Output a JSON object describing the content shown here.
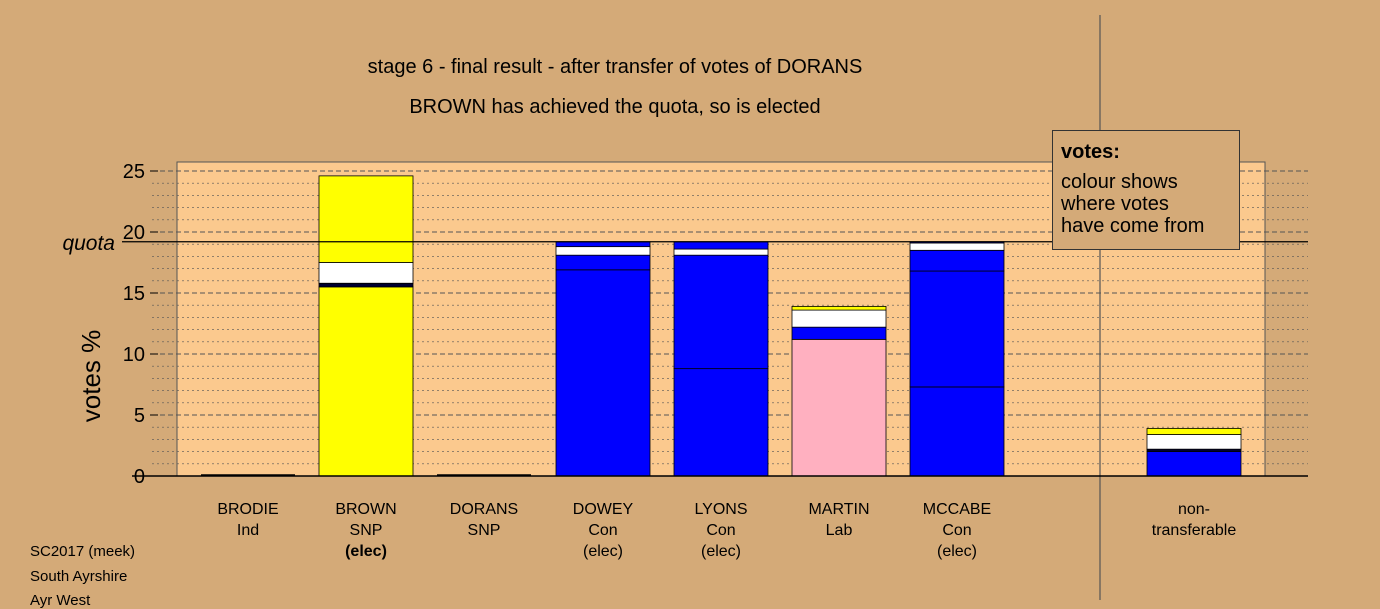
{
  "title_line1": "stage 6 - final result - after transfer of votes of DORANS",
  "title_line2": "BROWN has achieved the quota, so is elected",
  "legend": {
    "title": "votes:",
    "text": "colour shows\nwhere votes\nhave come from"
  },
  "footer": [
    "SC2017 (meek)",
    "South Ayrshire",
    "Ayr West"
  ],
  "colors": {
    "background": "#d4aa78",
    "plot_area": "#fbc98e",
    "SNP": "#ffff00",
    "Con": "#0000ff",
    "Lab": "#ffb0c0",
    "Ind": "#ffffff",
    "other": "#ffffff",
    "separator": "#000033"
  },
  "chart_data": {
    "type": "bar",
    "stacked": true,
    "ylabel": "votes %",
    "ylim": [
      0,
      25
    ],
    "yticks": [
      0,
      5,
      10,
      15,
      20,
      25
    ],
    "quota": 19.2,
    "quota_label": "quota",
    "grid": true,
    "legend_position": "top-right",
    "categories": [
      {
        "name": "BRODIE",
        "party": "Ind",
        "status": ""
      },
      {
        "name": "BROWN",
        "party": "SNP",
        "status": "(elec)"
      },
      {
        "name": "DORANS",
        "party": "SNP",
        "status": ""
      },
      {
        "name": "DOWEY",
        "party": "Con",
        "status": "(elec)"
      },
      {
        "name": "LYONS",
        "party": "Con",
        "status": "(elec)"
      },
      {
        "name": "MARTIN",
        "party": "Lab",
        "status": ""
      },
      {
        "name": "MCCABE",
        "party": "Con",
        "status": "(elec)"
      },
      {
        "name": "non-",
        "party": "transferable",
        "status": ""
      }
    ],
    "stacks": [
      [],
      [
        {
          "source": "SNP",
          "value": 15.5
        },
        {
          "source": "separator",
          "value": 0.3
        },
        {
          "source": "other",
          "value": 1.7
        },
        {
          "source": "SNP",
          "value": 7.1
        }
      ],
      [],
      [
        {
          "source": "Con",
          "value": 16.9
        },
        {
          "source": "Con",
          "value": 1.2
        },
        {
          "source": "other",
          "value": 0.7
        },
        {
          "source": "Con",
          "value": 0.4
        }
      ],
      [
        {
          "source": "Con",
          "value": 8.8
        },
        {
          "source": "Con",
          "value": 9.3
        },
        {
          "source": "other",
          "value": 0.5
        },
        {
          "source": "Con",
          "value": 0.6
        }
      ],
      [
        {
          "source": "Lab",
          "value": 11.2
        },
        {
          "source": "Con",
          "value": 1.0
        },
        {
          "source": "other",
          "value": 1.4
        },
        {
          "source": "SNP",
          "value": 0.3
        }
      ],
      [
        {
          "source": "Con",
          "value": 7.3
        },
        {
          "source": "Con",
          "value": 9.5
        },
        {
          "source": "Con",
          "value": 1.7
        },
        {
          "source": "other",
          "value": 0.6
        },
        {
          "source": "Con",
          "value": 0.1
        }
      ],
      [
        {
          "source": "Con",
          "value": 2.0
        },
        {
          "source": "separator",
          "value": 0.2
        },
        {
          "source": "other",
          "value": 1.2
        },
        {
          "source": "SNP",
          "value": 0.5
        }
      ]
    ]
  }
}
